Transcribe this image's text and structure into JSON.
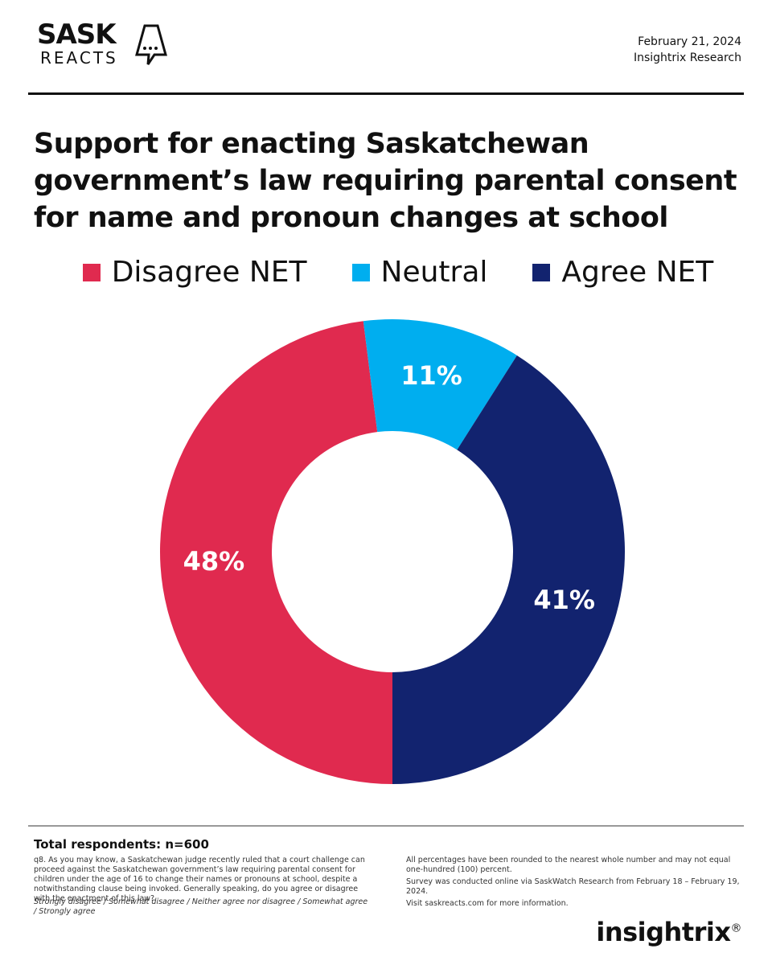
{
  "header": {
    "logo_top": "SASK",
    "logo_bottom": "REACTS",
    "date": "February 21, 2024",
    "source": "Insightrix Research"
  },
  "chart_data": {
    "type": "donut",
    "title": "Support for enacting Saskatchewan government’s law requiring parental consent for name and pronoun changes at school",
    "categories": [
      "Disagree NET",
      "Neutral",
      "Agree NET"
    ],
    "values": [
      48,
      11,
      41
    ],
    "value_labels": [
      "48%",
      "11%",
      "41%"
    ],
    "colors": [
      "#e02a4f",
      "#00aeef",
      "#12236f"
    ]
  },
  "footer": {
    "respondents": "Total respondents: n=600",
    "question": "q8. As you may know, a Saskatchewan judge recently ruled that a court challenge can proceed against the Saskatchewan government’s law requiring parental consent for children under the age of 16 to change their names or pronouns at school, despite a notwithstanding clause being invoked. Generally speaking, do you agree or disagree with the enactment of this law?",
    "scale": "Strongly disagree / Somewhat disagree / Neither agree nor disagree / Somewhat agree / Strongly agree",
    "notes": [
      "All percentages have been rounded to the nearest whole number and may not equal one-hundred (100) percent.",
      "Survey was conducted online via SaskWatch Research from  February 18 – February 19, 2024.",
      "Visit saskreacts.com for more information."
    ],
    "brand": "insightrix",
    "brand_mark": "®"
  }
}
